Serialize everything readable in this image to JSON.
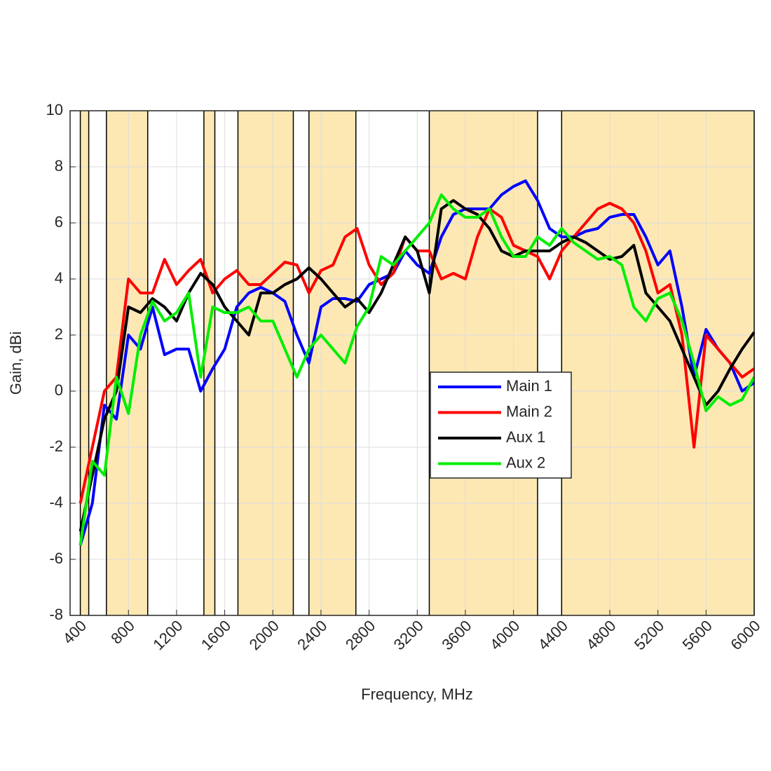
{
  "chart_data": {
    "type": "line",
    "xlabel": "Frequency, MHz",
    "ylabel": "Gain, dBi",
    "xlim": [
      315,
      6000
    ],
    "ylim": [
      -8,
      10
    ],
    "xticks": [
      400,
      800,
      1200,
      1600,
      2000,
      2400,
      2800,
      3200,
      3600,
      4000,
      4400,
      4800,
      5200,
      5600,
      6000
    ],
    "yticks": [
      -8,
      -6,
      -4,
      -2,
      0,
      2,
      4,
      6,
      8,
      10
    ],
    "grid": true,
    "legend_position": "center",
    "bands": [
      [
        400,
        470
      ],
      [
        617,
        960
      ],
      [
        1427,
        1518
      ],
      [
        1710,
        2170
      ],
      [
        2300,
        2690
      ],
      [
        3300,
        4200
      ],
      [
        4400,
        6000
      ]
    ],
    "band_color": "#fde8b4",
    "x": [
      400,
      500,
      600,
      700,
      800,
      900,
      1000,
      1100,
      1200,
      1300,
      1400,
      1500,
      1600,
      1700,
      1800,
      1900,
      2000,
      2100,
      2200,
      2300,
      2400,
      2500,
      2600,
      2700,
      2800,
      2900,
      3000,
      3100,
      3200,
      3300,
      3400,
      3500,
      3600,
      3700,
      3800,
      3900,
      4000,
      4100,
      4200,
      4300,
      4400,
      4500,
      4600,
      4700,
      4800,
      4900,
      5000,
      5100,
      5200,
      5300,
      5400,
      5500,
      5600,
      5700,
      5800,
      5900,
      6000
    ],
    "series": [
      {
        "name": "Main 1",
        "color": "#0000ff",
        "values": [
          -5.5,
          -4,
          -0.5,
          -1,
          2,
          1.5,
          3,
          1.3,
          1.5,
          1.5,
          0,
          0.8,
          1.5,
          3,
          3.5,
          3.7,
          3.5,
          3.2,
          2,
          1,
          3,
          3.3,
          3.3,
          3.2,
          3.8,
          4,
          4.2,
          5,
          4.5,
          4.2,
          5.5,
          6.3,
          6.5,
          6.5,
          6.5,
          7,
          7.3,
          7.5,
          6.8,
          5.8,
          5.5,
          5.5,
          5.7,
          5.8,
          6.2,
          6.3,
          6.3,
          5.5,
          4.5,
          5,
          3,
          0.5,
          2.2,
          1.5,
          1,
          0,
          0.3
        ]
      },
      {
        "name": "Main 2",
        "color": "#ff0000",
        "values": [
          -4,
          -2,
          0,
          0.5,
          4,
          3.5,
          3.5,
          4.7,
          3.8,
          4.3,
          4.7,
          3.5,
          4,
          4.3,
          3.8,
          3.8,
          4.2,
          4.6,
          4.5,
          3.5,
          4.3,
          4.5,
          5.5,
          5.8,
          4.5,
          3.8,
          4.2,
          5.5,
          5,
          5,
          4,
          4.2,
          4,
          5.5,
          6.5,
          6.2,
          5.2,
          5,
          4.8,
          4,
          5,
          5.5,
          6,
          6.5,
          6.7,
          6.5,
          6,
          5,
          3.5,
          3.8,
          2,
          -2,
          2,
          1.5,
          1,
          0.5,
          0.8
        ]
      },
      {
        "name": "Aux 1",
        "color": "#000000",
        "values": [
          -5,
          -3,
          -1,
          0,
          3,
          2.8,
          3.3,
          3,
          2.5,
          3.5,
          4.2,
          3.8,
          3,
          2.5,
          2,
          3.5,
          3.5,
          3.8,
          4,
          4.4,
          4,
          3.5,
          3,
          3.3,
          2.8,
          3.5,
          4.5,
          5.5,
          5,
          3.5,
          6.5,
          6.8,
          6.5,
          6.3,
          5.8,
          5,
          4.8,
          5,
          5,
          5,
          5.3,
          5.5,
          5.3,
          5,
          4.7,
          4.8,
          5.2,
          3.5,
          3,
          2.5,
          1.5,
          0.5,
          -0.5,
          0,
          0.8,
          1.5,
          2.1
        ]
      },
      {
        "name": "Aux 2",
        "color": "#00ee00",
        "values": [
          -5.5,
          -2.5,
          -3,
          0.5,
          -0.8,
          2,
          3.2,
          2.5,
          2.8,
          3.5,
          0.5,
          3,
          2.8,
          2.8,
          3,
          2.5,
          2.5,
          1.5,
          0.5,
          1.5,
          2,
          1.5,
          1,
          2.3,
          3,
          4.8,
          4.5,
          5,
          5.5,
          6,
          7,
          6.5,
          6.2,
          6.2,
          6.5,
          5.5,
          4.8,
          4.8,
          5.5,
          5.2,
          5.8,
          5.3,
          5,
          4.7,
          4.8,
          4.5,
          3,
          2.5,
          3.3,
          3.5,
          2.5,
          1,
          -0.7,
          -0.2,
          -0.5,
          -0.3,
          0.5
        ]
      }
    ]
  }
}
